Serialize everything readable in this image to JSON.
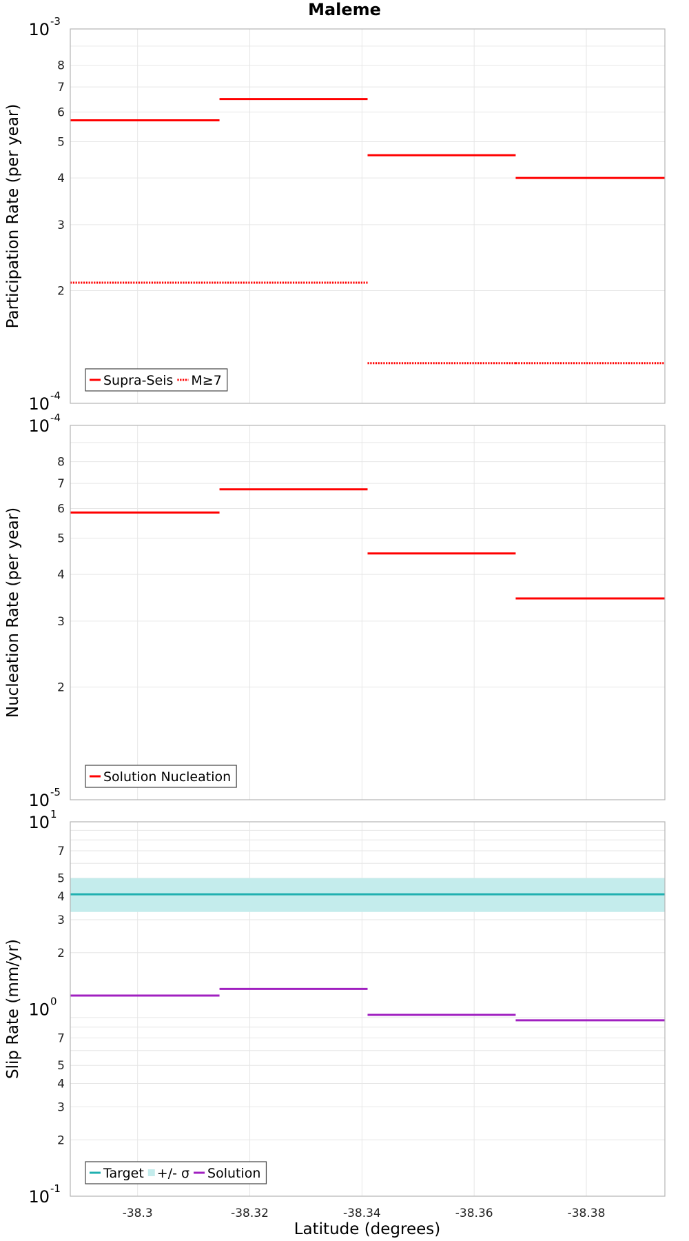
{
  "chart_data": [
    {
      "type": "line",
      "title": "Maleme",
      "xlabel": "Latitude (degrees)",
      "ylabel": "Participation Rate (per year)",
      "yscale": "log",
      "ylim": [
        0.0001,
        0.001
      ],
      "xlim": [
        -38.288,
        -38.394
      ],
      "x_ticks": [
        "-38.3",
        "-38.32",
        "-38.34",
        "-38.36",
        "-38.38"
      ],
      "y_minor_ticks": [
        "2",
        "3",
        "4",
        "5",
        "6",
        "7",
        "8"
      ],
      "y_major_ticks": [
        {
          "base": "10",
          "exp": "-4"
        },
        {
          "base": "10",
          "exp": "-3"
        }
      ],
      "legend": {
        "position": "bottom-left",
        "entries": [
          "Supra-Seis",
          "M≥7"
        ]
      },
      "series": [
        {
          "name": "Supra-Seis",
          "color": "#ff0000",
          "style": "solid",
          "segments": [
            {
              "x": [
                -38.288,
                -38.3146
              ],
              "y": 0.00057
            },
            {
              "x": [
                -38.3146,
                -38.341
              ],
              "y": 0.00065
            },
            {
              "x": [
                -38.341,
                -38.3674
              ],
              "y": 0.00046
            },
            {
              "x": [
                -38.3674,
                -38.394
              ],
              "y": 0.0004
            }
          ]
        },
        {
          "name": "M≥7",
          "color": "#ff0000",
          "style": "dotted",
          "segments": [
            {
              "x": [
                -38.288,
                -38.3146
              ],
              "y": 0.00021
            },
            {
              "x": [
                -38.3146,
                -38.341
              ],
              "y": 0.00021
            },
            {
              "x": [
                -38.341,
                -38.3674
              ],
              "y": 0.000128
            },
            {
              "x": [
                -38.3674,
                -38.394
              ],
              "y": 0.000128
            }
          ]
        }
      ]
    },
    {
      "type": "line",
      "xlabel": "",
      "ylabel": "Nucleation Rate (per year)",
      "yscale": "log",
      "ylim": [
        1e-05,
        0.0001
      ],
      "xlim": [
        -38.288,
        -38.394
      ],
      "y_minor_ticks": [
        "2",
        "3",
        "4",
        "5",
        "6",
        "7",
        "8"
      ],
      "y_major_ticks": [
        {
          "base": "10",
          "exp": "-5"
        },
        {
          "base": "10",
          "exp": "-4"
        }
      ],
      "legend": {
        "position": "bottom-left",
        "entries": [
          "Solution Nucleation"
        ]
      },
      "series": [
        {
          "name": "Solution Nucleation",
          "color": "#ff0000",
          "style": "solid",
          "segments": [
            {
              "x": [
                -38.288,
                -38.3146
              ],
              "y": 5.85e-05
            },
            {
              "x": [
                -38.3146,
                -38.341
              ],
              "y": 6.75e-05
            },
            {
              "x": [
                -38.341,
                -38.3674
              ],
              "y": 4.55e-05
            },
            {
              "x": [
                -38.3674,
                -38.394
              ],
              "y": 3.45e-05
            }
          ]
        }
      ]
    },
    {
      "type": "line",
      "xlabel": "Latitude (degrees)",
      "ylabel": "Slip Rate (mm/yr)",
      "yscale": "log",
      "ylim": [
        0.1,
        10
      ],
      "xlim": [
        -38.288,
        -38.394
      ],
      "y_minor_ticks": [
        "2",
        "3",
        "4",
        "5",
        "7",
        "2",
        "3",
        "4",
        "5",
        "7"
      ],
      "y_minor_values": [
        0.2,
        0.3,
        0.4,
        0.5,
        0.7,
        2,
        3,
        4,
        5,
        7
      ],
      "y_major_ticks": [
        {
          "base": "10",
          "exp": "-1"
        },
        {
          "base": "10",
          "exp": "0"
        },
        {
          "base": "10",
          "exp": "1"
        }
      ],
      "legend": {
        "position": "bottom-left",
        "entries": [
          "Target",
          "+/- σ",
          "Solution"
        ]
      },
      "band": {
        "name": "+/- σ",
        "color": "#c4ecec",
        "low": 3.3,
        "high": 5.0
      },
      "series": [
        {
          "name": "Target",
          "color": "#20b0b0",
          "style": "solid",
          "segments": [
            {
              "x": [
                -38.288,
                -38.394
              ],
              "y": 4.1
            }
          ]
        },
        {
          "name": "Solution",
          "color": "#a020c0",
          "style": "solid",
          "segments": [
            {
              "x": [
                -38.288,
                -38.3146
              ],
              "y": 1.18
            },
            {
              "x": [
                -38.3146,
                -38.341
              ],
              "y": 1.28
            },
            {
              "x": [
                -38.341,
                -38.3674
              ],
              "y": 0.93
            },
            {
              "x": [
                -38.3674,
                -38.394
              ],
              "y": 0.87
            }
          ]
        }
      ]
    }
  ]
}
